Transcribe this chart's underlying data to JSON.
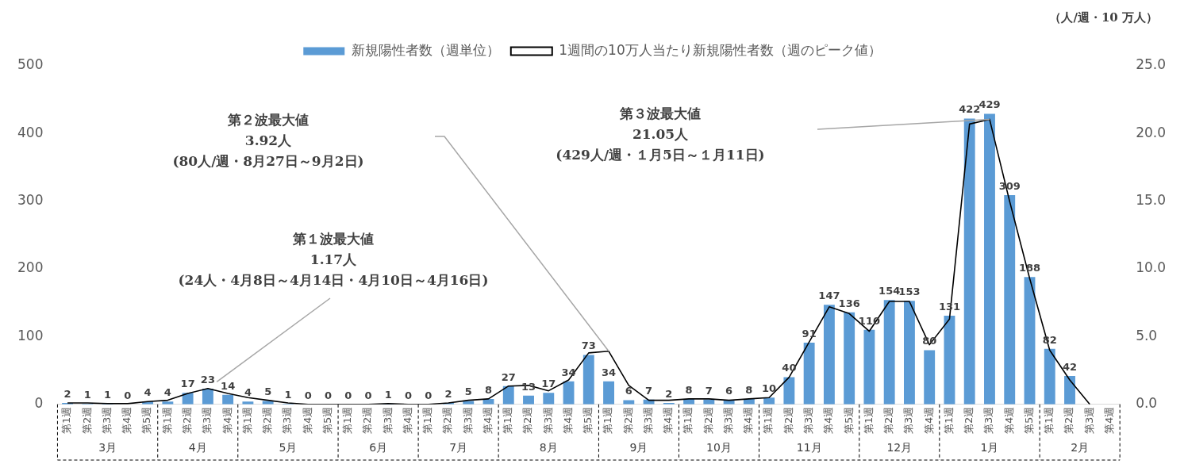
{
  "chart_data": {
    "type": "bar",
    "categories": [
      "第1週",
      "第2週",
      "第3週",
      "第4週",
      "第5週",
      "第1週",
      "第2週",
      "第3週",
      "第4週",
      "第1週",
      "第2週",
      "第3週",
      "第4週",
      "第5週",
      "第1週",
      "第2週",
      "第3週",
      "第4週",
      "第1週",
      "第2週",
      "第3週",
      "第4週",
      "第1週",
      "第2週",
      "第3週",
      "第4週",
      "第5週",
      "第1週",
      "第2週",
      "第3週",
      "第4週",
      "第1週",
      "第2週",
      "第3週",
      "第4週",
      "第1週",
      "第2週",
      "第3週",
      "第4週",
      "第5週",
      "第1週",
      "第2週",
      "第3週",
      "第4週",
      "第1週",
      "第2週",
      "第3週",
      "第4週",
      "第5週",
      "第1週",
      "第2週",
      "第3週",
      "第4週"
    ],
    "series": [
      {
        "name": "新規陽性者数（週単位）",
        "color": "#5b9bd5",
        "values": [
          2,
          1,
          1,
          0,
          4,
          4,
          17,
          23,
          14,
          4,
          5,
          1,
          0,
          0,
          0,
          0,
          1,
          0,
          0,
          2,
          5,
          8,
          27,
          13,
          17,
          34,
          73,
          34,
          6,
          7,
          2,
          8,
          7,
          6,
          8,
          10,
          40,
          91,
          147,
          136,
          110,
          154,
          153,
          80,
          131,
          422,
          429,
          309,
          188,
          82,
          42,
          null,
          null
        ],
        "value_labels": [
          "2",
          "1",
          "1",
          "0",
          "4",
          "4",
          "17",
          "23",
          "14",
          "4",
          "5",
          "1",
          "0",
          "0",
          "0",
          "0",
          "1",
          "0",
          "0",
          "2",
          "5",
          "8",
          "27",
          "13",
          "17",
          "34",
          "73",
          "34",
          "6",
          "7",
          "2",
          "8",
          "7",
          "6",
          "8",
          "10",
          "40",
          "91",
          "147",
          "136",
          "110",
          "154",
          "153",
          "80",
          "131",
          "422",
          "429",
          "309",
          "188",
          "82",
          "42",
          null,
          null
        ]
      },
      {
        "name": "1週間の10万人当たり新規陽性者数（週のピーク値）",
        "type": "line",
        "axis": "y2",
        "color": "#000000",
        "values": [
          0.1,
          0.1,
          0.05,
          0.05,
          0.2,
          0.3,
          0.8,
          1.17,
          0.8,
          0.5,
          0.3,
          0.1,
          0,
          0,
          0,
          0,
          0.05,
          0,
          0,
          0.1,
          0.3,
          0.4,
          1.35,
          1.4,
          1.0,
          1.8,
          3.8,
          3.92,
          1.4,
          0.3,
          0.3,
          0.4,
          0.4,
          0.3,
          0.4,
          0.5,
          2.0,
          4.6,
          7.2,
          6.7,
          5.4,
          7.6,
          7.6,
          4.4,
          6.3,
          20.7,
          21.05,
          15.0,
          9.3,
          4.0,
          1.8,
          0,
          null
        ]
      }
    ],
    "ylim": [
      0,
      500
    ],
    "yticks": [
      0,
      100,
      200,
      300,
      400,
      500
    ],
    "y2lim": [
      0,
      25
    ],
    "y2ticks": [
      {
        "value": 0,
        "label": "0.0"
      },
      {
        "value": 5,
        "label": "5.0"
      },
      {
        "value": 10,
        "label": "10.0"
      },
      {
        "value": 15,
        "label": "15.0"
      },
      {
        "value": 20,
        "label": "20.0"
      },
      {
        "value": 25,
        "label": "25.0"
      }
    ],
    "y2label": "（人/週・10 万人）",
    "legend": "top",
    "grid": false,
    "marker": "none",
    "line_style": "solid",
    "annotations": [
      "第１波最大値\n1.17人\n(24人・4月8日～4月14日・4月10日～4月16日)",
      "第２波最大値\n3.92人\n(80人/週・8月27日～9月2日)",
      "第３波最大値\n21.05人\n(429人/週・１月5日～１月11日)",
      "3月",
      "4月",
      "5月",
      "6月",
      "7月",
      "8月",
      "9月",
      "10月",
      "11月",
      "12月",
      "1月",
      "2月"
    ]
  }
}
